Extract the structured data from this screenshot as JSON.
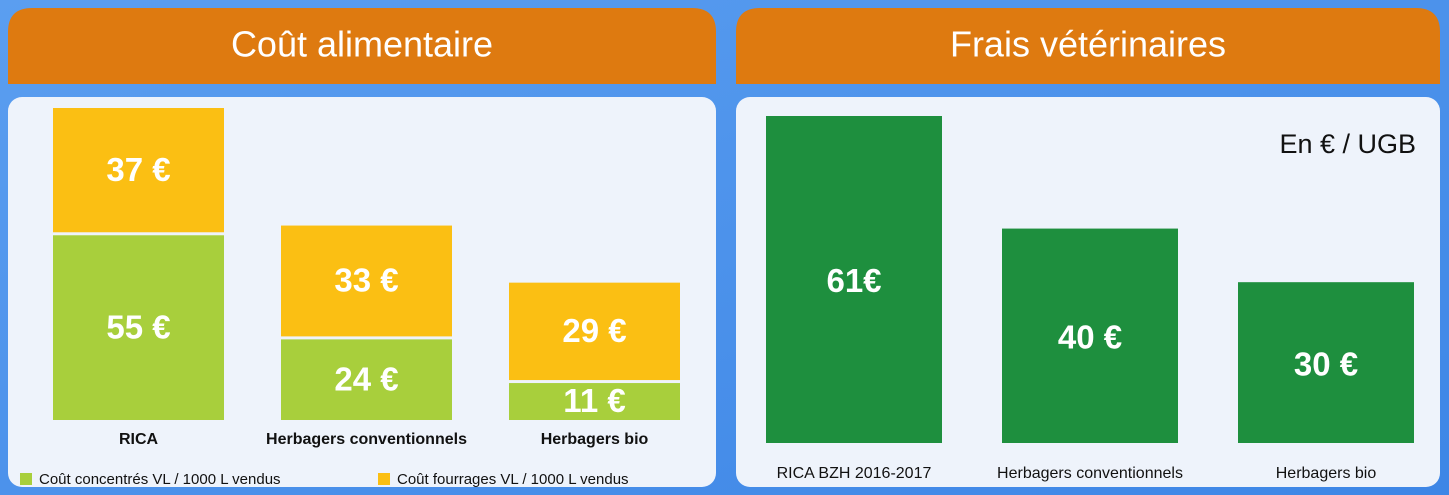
{
  "chart_data": [
    {
      "type": "stacked_bar",
      "title": "Coût alimentaire",
      "categories": [
        "RICA",
        "Herbagers conventionnels",
        "Herbagers bio"
      ],
      "series": [
        {
          "name": "Coût concentrés VL / 1000 L vendus",
          "color": "#a8cf3c",
          "values": [
            55,
            24,
            11
          ],
          "value_labels": [
            "55 €",
            "24 €",
            "11 €"
          ]
        },
        {
          "name": "Coût fourrages VL / 1000 L vendus",
          "color": "#fbbf13",
          "values": [
            37,
            33,
            29
          ],
          "value_labels": [
            "37 €",
            "33 €",
            "29 €"
          ]
        }
      ]
    },
    {
      "type": "bar",
      "title": "Frais vétérinaires",
      "annotation": "En € / UGB",
      "categories": [
        "RICA BZH 2016-2017",
        "Herbagers conventionnels",
        "Herbagers bio"
      ],
      "values": [
        61,
        40,
        30
      ],
      "value_labels": [
        "61€",
        "40 €",
        "30 €"
      ],
      "color": "#1e8f3e"
    }
  ]
}
